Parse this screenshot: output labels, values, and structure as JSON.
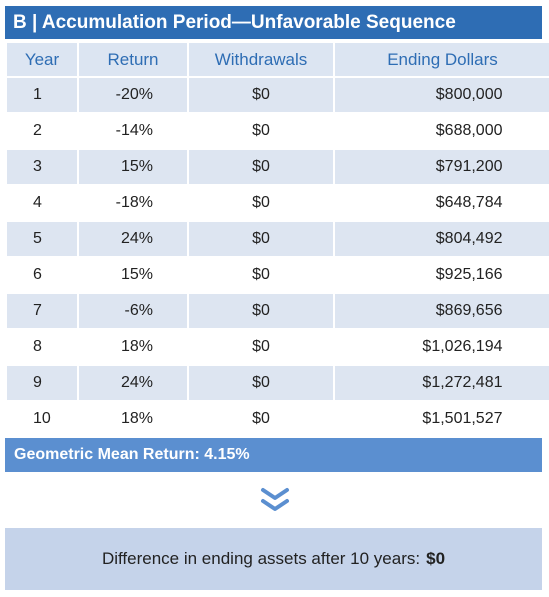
{
  "title": "B | Accumulation Period—Unfavorable Sequence",
  "columns": [
    "Year",
    "Return",
    "Withdrawals",
    "Ending Dollars"
  ],
  "rows": [
    {
      "year": "1",
      "ret": "-20%",
      "withdrawals": "$0",
      "ending": "$800,000"
    },
    {
      "year": "2",
      "ret": "-14%",
      "withdrawals": "$0",
      "ending": "$688,000"
    },
    {
      "year": "3",
      "ret": "15%",
      "withdrawals": "$0",
      "ending": "$791,200"
    },
    {
      "year": "4",
      "ret": "-18%",
      "withdrawals": "$0",
      "ending": "$648,784"
    },
    {
      "year": "5",
      "ret": "24%",
      "withdrawals": "$0",
      "ending": "$804,492"
    },
    {
      "year": "6",
      "ret": "15%",
      "withdrawals": "$0",
      "ending": "$925,166"
    },
    {
      "year": "7",
      "ret": "-6%",
      "withdrawals": "$0",
      "ending": "$869,656"
    },
    {
      "year": "8",
      "ret": "18%",
      "withdrawals": "$0",
      "ending": "$1,026,194"
    },
    {
      "year": "9",
      "ret": "24%",
      "withdrawals": "$0",
      "ending": "$1,272,481"
    },
    {
      "year": "10",
      "ret": "18%",
      "withdrawals": "$0",
      "ending": "$1,501,527"
    }
  ],
  "geometric_mean": "Geometric Mean Return: 4.15%",
  "difference": {
    "label": "Difference in ending assets after 10 years:",
    "value": "$0"
  },
  "icons": {
    "chevron": "double-chevron-down-icon"
  },
  "colors": {
    "title_bg": "#2e6db4",
    "header_text": "#2e6db4",
    "stripe": "#dde5f1",
    "gm_bg": "#5b8fd0",
    "diff_bg": "#c5d3ea"
  }
}
